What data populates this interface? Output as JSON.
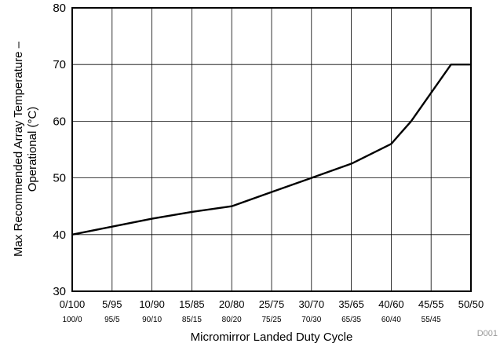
{
  "chart_data": {
    "type": "line",
    "xlabel": "Micromirror Landed Duty Cycle",
    "ylabel": "Max Recommended Array Temperature –",
    "ylabel_line2": "Operational (°C)",
    "corner_code": "D001",
    "categories": [
      "0/100",
      "5/95",
      "10/90",
      "15/85",
      "20/80",
      "25/75",
      "30/70",
      "35/65",
      "40/60",
      "45/55",
      "50/50"
    ],
    "categories_secondary": [
      "100/0",
      "95/5",
      "90/10",
      "85/15",
      "80/20",
      "75/25",
      "70/30",
      "65/35",
      "60/40",
      "55/45",
      ""
    ],
    "y_ticks": [
      30,
      40,
      50,
      60,
      70,
      80
    ],
    "ylim": [
      30,
      80
    ],
    "xlim": [
      0,
      50
    ],
    "grid": true,
    "series": [
      {
        "x": [
          0,
          5,
          10,
          15,
          20,
          25,
          30,
          35,
          40,
          42.5,
          45,
          47.5,
          50
        ],
        "y": [
          40,
          41.4,
          42.8,
          44.0,
          45.0,
          47.5,
          50.0,
          52.5,
          56.0,
          60.0,
          65.0,
          70.0,
          70.0
        ]
      }
    ]
  }
}
